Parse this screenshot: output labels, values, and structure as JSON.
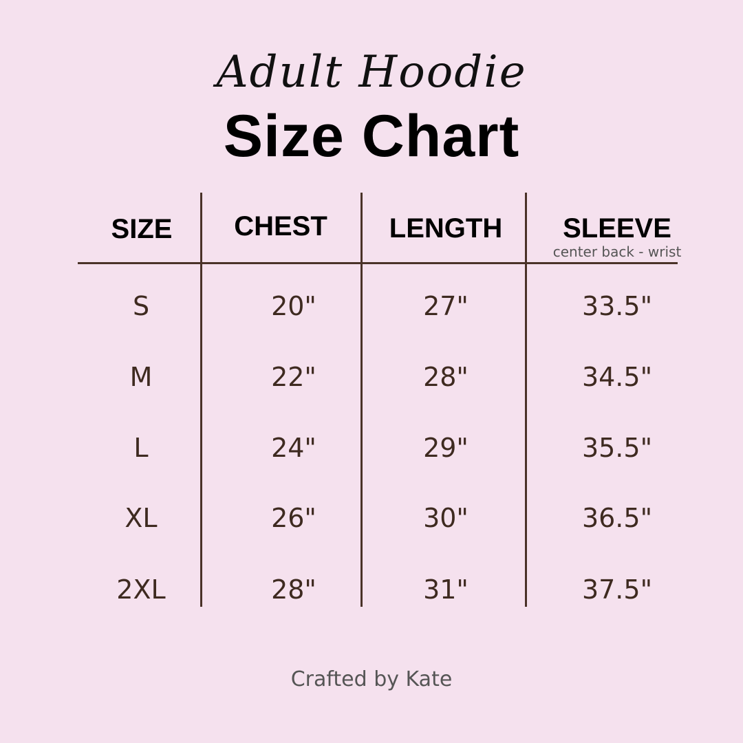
{
  "title_script": "Adult Hoodie",
  "title": "Size Chart",
  "table": {
    "headers": [
      "SIZE",
      "CHEST",
      "LENGTH",
      "SLEEVE"
    ],
    "sleeve_note": "center back - wrist",
    "rows": [
      [
        "S",
        "20\"",
        "27\"",
        "33.5\""
      ],
      [
        "M",
        "22\"",
        "28\"",
        "34.5\""
      ],
      [
        "L",
        "24\"",
        "29\"",
        "35.5\""
      ],
      [
        "XL",
        "26\"",
        "30\"",
        "36.5\""
      ],
      [
        "2XL",
        "28\"",
        "31\"",
        "37.5\""
      ]
    ]
  },
  "footer": "Crafted by Kate",
  "colors": {
    "background": "#f5e1ee",
    "lines": "#4a3228",
    "values": "#3e2a20"
  }
}
